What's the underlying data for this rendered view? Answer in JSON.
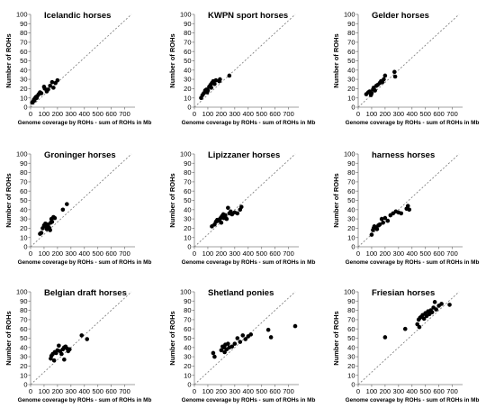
{
  "chart_data": [
    {
      "type": "scatter",
      "title": "Icelandic horses",
      "xlabel": "Genome coverage by ROHs - sum of ROHs in Mb",
      "ylabel": "Number of ROHs",
      "xlim": [
        0,
        750
      ],
      "ylim": [
        0,
        100
      ],
      "xticks": [
        0,
        100,
        200,
        300,
        400,
        500,
        600,
        700
      ],
      "yticks": [
        0,
        10,
        20,
        30,
        40,
        50,
        60,
        70,
        80,
        90,
        100
      ],
      "reference_line": "diagonal dashed",
      "points": [
        [
          12,
          5
        ],
        [
          18,
          6
        ],
        [
          25,
          8
        ],
        [
          30,
          9
        ],
        [
          35,
          10
        ],
        [
          40,
          11
        ],
        [
          45,
          10
        ],
        [
          50,
          12
        ],
        [
          28,
          7
        ],
        [
          60,
          14
        ],
        [
          70,
          16
        ],
        [
          80,
          15
        ],
        [
          100,
          22
        ],
        [
          105,
          20
        ],
        [
          120,
          17
        ],
        [
          130,
          19
        ],
        [
          145,
          23
        ],
        [
          160,
          27
        ],
        [
          170,
          21
        ],
        [
          185,
          26
        ],
        [
          200,
          29
        ]
      ]
    },
    {
      "type": "scatter",
      "title": "KWPN sport horses",
      "xlabel": "Genome coverage by ROHs - sum of ROHs in Mb",
      "ylabel": "Number of ROHs",
      "xlim": [
        0,
        750
      ],
      "ylim": [
        0,
        100
      ],
      "xticks": [
        0,
        100,
        200,
        300,
        400,
        500,
        600,
        700
      ],
      "yticks": [
        0,
        10,
        20,
        30,
        40,
        50,
        60,
        70,
        80,
        90,
        100
      ],
      "reference_line": "diagonal dashed",
      "points": [
        [
          50,
          10
        ],
        [
          60,
          13
        ],
        [
          70,
          15
        ],
        [
          80,
          18
        ],
        [
          90,
          19
        ],
        [
          95,
          16
        ],
        [
          100,
          18
        ],
        [
          110,
          22
        ],
        [
          120,
          24
        ],
        [
          125,
          21
        ],
        [
          130,
          26
        ],
        [
          140,
          28
        ],
        [
          150,
          25
        ],
        [
          160,
          29
        ],
        [
          185,
          28
        ],
        [
          190,
          30
        ],
        [
          260,
          34
        ]
      ]
    },
    {
      "type": "scatter",
      "title": "Gelder horses",
      "xlabel": "Genome coverage by ROHs - sum of ROHs in Mb",
      "ylabel": "Number of ROHs",
      "xlim": [
        0,
        750
      ],
      "ylim": [
        0,
        100
      ],
      "xticks": [
        0,
        100,
        200,
        300,
        400,
        500,
        600,
        700
      ],
      "yticks": [
        0,
        10,
        20,
        30,
        40,
        50,
        60,
        70,
        80,
        90,
        100
      ],
      "reference_line": "diagonal dashed",
      "points": [
        [
          60,
          14
        ],
        [
          75,
          16
        ],
        [
          85,
          17
        ],
        [
          95,
          13
        ],
        [
          100,
          15
        ],
        [
          110,
          19
        ],
        [
          115,
          21
        ],
        [
          125,
          18
        ],
        [
          135,
          23
        ],
        [
          145,
          24
        ],
        [
          160,
          26
        ],
        [
          170,
          28
        ],
        [
          180,
          27
        ],
        [
          190,
          30
        ],
        [
          200,
          34
        ],
        [
          270,
          38
        ],
        [
          275,
          33
        ]
      ]
    },
    {
      "type": "scatter",
      "title": "Groninger horses",
      "xlabel": "Genome coverage by ROHs - sum of ROHs in Mb",
      "ylabel": "Number of ROHs",
      "xlim": [
        0,
        750
      ],
      "ylim": [
        0,
        100
      ],
      "xticks": [
        0,
        100,
        200,
        300,
        400,
        500,
        600,
        700
      ],
      "yticks": [
        0,
        10,
        20,
        30,
        40,
        50,
        60,
        70,
        80,
        90,
        100
      ],
      "reference_line": "diagonal dashed",
      "points": [
        [
          70,
          14
        ],
        [
          80,
          15
        ],
        [
          90,
          20
        ],
        [
          100,
          23
        ],
        [
          110,
          25
        ],
        [
          115,
          22
        ],
        [
          120,
          19
        ],
        [
          130,
          24
        ],
        [
          135,
          21
        ],
        [
          140,
          20
        ],
        [
          145,
          18
        ],
        [
          150,
          26
        ],
        [
          155,
          30
        ],
        [
          160,
          27
        ],
        [
          170,
          32
        ],
        [
          180,
          31
        ],
        [
          240,
          40
        ],
        [
          270,
          46
        ]
      ]
    },
    {
      "type": "scatter",
      "title": "Lipizzaner horses",
      "xlabel": "Genome coverage by ROHs - sum of ROHs in Mb",
      "ylabel": "Number of ROHs",
      "xlim": [
        0,
        750
      ],
      "ylim": [
        0,
        100
      ],
      "xticks": [
        0,
        100,
        200,
        300,
        400,
        500,
        600,
        700
      ],
      "yticks": [
        0,
        10,
        20,
        30,
        40,
        50,
        60,
        70,
        80,
        90,
        100
      ],
      "reference_line": "diagonal dashed",
      "points": [
        [
          130,
          22
        ],
        [
          150,
          24
        ],
        [
          160,
          27
        ],
        [
          170,
          29
        ],
        [
          180,
          28
        ],
        [
          190,
          30
        ],
        [
          195,
          31
        ],
        [
          200,
          26
        ],
        [
          205,
          33
        ],
        [
          215,
          35
        ],
        [
          220,
          31
        ],
        [
          230,
          34
        ],
        [
          240,
          30
        ],
        [
          250,
          42
        ],
        [
          260,
          36
        ],
        [
          270,
          38
        ],
        [
          280,
          35
        ],
        [
          300,
          37
        ],
        [
          320,
          36
        ],
        [
          340,
          40
        ],
        [
          350,
          43
        ]
      ]
    },
    {
      "type": "scatter",
      "title": "harness horses",
      "xlabel": "Genome coverage by ROHs - sum of ROHs in Mb",
      "ylabel": "Number of ROHs",
      "xlim": [
        0,
        750
      ],
      "ylim": [
        0,
        100
      ],
      "xticks": [
        0,
        100,
        200,
        300,
        400,
        500,
        600,
        700
      ],
      "yticks": [
        0,
        10,
        20,
        30,
        40,
        50,
        60,
        70,
        80,
        90,
        100
      ],
      "reference_line": "diagonal dashed",
      "points": [
        [
          100,
          13
        ],
        [
          110,
          18
        ],
        [
          115,
          20
        ],
        [
          120,
          22
        ],
        [
          130,
          21
        ],
        [
          140,
          19
        ],
        [
          150,
          23
        ],
        [
          160,
          24
        ],
        [
          175,
          30
        ],
        [
          185,
          26
        ],
        [
          200,
          31
        ],
        [
          220,
          28
        ],
        [
          240,
          34
        ],
        [
          260,
          36
        ],
        [
          280,
          38
        ],
        [
          300,
          37
        ],
        [
          320,
          36
        ],
        [
          360,
          41
        ],
        [
          370,
          44
        ],
        [
          380,
          40
        ]
      ]
    },
    {
      "type": "scatter",
      "title": "Belgian draft horses",
      "xlabel": "Genome coverage by ROHs - sum of ROHs in Mb",
      "ylabel": "Number of ROHs",
      "xlim": [
        0,
        750
      ],
      "ylim": [
        0,
        100
      ],
      "xticks": [
        0,
        100,
        200,
        300,
        400,
        500,
        600,
        700
      ],
      "yticks": [
        0,
        10,
        20,
        30,
        40,
        50,
        60,
        70,
        80,
        90,
        100
      ],
      "reference_line": "diagonal dashed",
      "points": [
        [
          150,
          28
        ],
        [
          155,
          31
        ],
        [
          165,
          33
        ],
        [
          175,
          26
        ],
        [
          180,
          35
        ],
        [
          190,
          34
        ],
        [
          200,
          37
        ],
        [
          210,
          42
        ],
        [
          220,
          36
        ],
        [
          230,
          33
        ],
        [
          240,
          38
        ],
        [
          250,
          40
        ],
        [
          260,
          41
        ],
        [
          270,
          39
        ],
        [
          280,
          36
        ],
        [
          290,
          38
        ],
        [
          250,
          27
        ],
        [
          380,
          53
        ],
        [
          420,
          49
        ]
      ]
    },
    {
      "type": "scatter",
      "title": "Shetland ponies",
      "xlabel": "Genome coverage by ROHs - sum of ROHs in Mb",
      "ylabel": "Number of ROHs",
      "xlim": [
        0,
        750
      ],
      "ylim": [
        0,
        100
      ],
      "xticks": [
        0,
        100,
        200,
        300,
        400,
        500,
        600,
        700
      ],
      "yticks": [
        0,
        10,
        20,
        30,
        40,
        50,
        60,
        70,
        80,
        90,
        100
      ],
      "reference_line": "diagonal dashed",
      "points": [
        [
          140,
          34
        ],
        [
          150,
          30
        ],
        [
          200,
          37
        ],
        [
          210,
          41
        ],
        [
          220,
          40
        ],
        [
          225,
          35
        ],
        [
          230,
          43
        ],
        [
          240,
          38
        ],
        [
          250,
          44
        ],
        [
          260,
          40
        ],
        [
          280,
          41
        ],
        [
          300,
          44
        ],
        [
          320,
          50
        ],
        [
          340,
          46
        ],
        [
          360,
          53
        ],
        [
          380,
          49
        ],
        [
          400,
          52
        ],
        [
          420,
          54
        ],
        [
          550,
          59
        ],
        [
          570,
          51
        ],
        [
          750,
          63
        ]
      ]
    },
    {
      "type": "scatter",
      "title": "Friesian horses",
      "xlabel": "Genome coverage by ROHs - sum of ROHs in Mb",
      "ylabel": "Number of ROHs",
      "xlim": [
        0,
        750
      ],
      "ylim": [
        0,
        100
      ],
      "xticks": [
        0,
        100,
        200,
        300,
        400,
        500,
        600,
        700
      ],
      "yticks": [
        0,
        10,
        20,
        30,
        40,
        50,
        60,
        70,
        80,
        90,
        100
      ],
      "reference_line": "diagonal dashed",
      "points": [
        [
          200,
          51
        ],
        [
          350,
          60
        ],
        [
          440,
          65
        ],
        [
          450,
          70
        ],
        [
          455,
          62
        ],
        [
          460,
          72
        ],
        [
          470,
          73
        ],
        [
          480,
          75
        ],
        [
          490,
          71
        ],
        [
          500,
          77
        ],
        [
          510,
          74
        ],
        [
          520,
          79
        ],
        [
          530,
          76
        ],
        [
          540,
          80
        ],
        [
          550,
          78
        ],
        [
          560,
          83
        ],
        [
          570,
          89
        ],
        [
          580,
          81
        ],
        [
          600,
          85
        ],
        [
          620,
          87
        ],
        [
          680,
          86
        ]
      ]
    }
  ]
}
